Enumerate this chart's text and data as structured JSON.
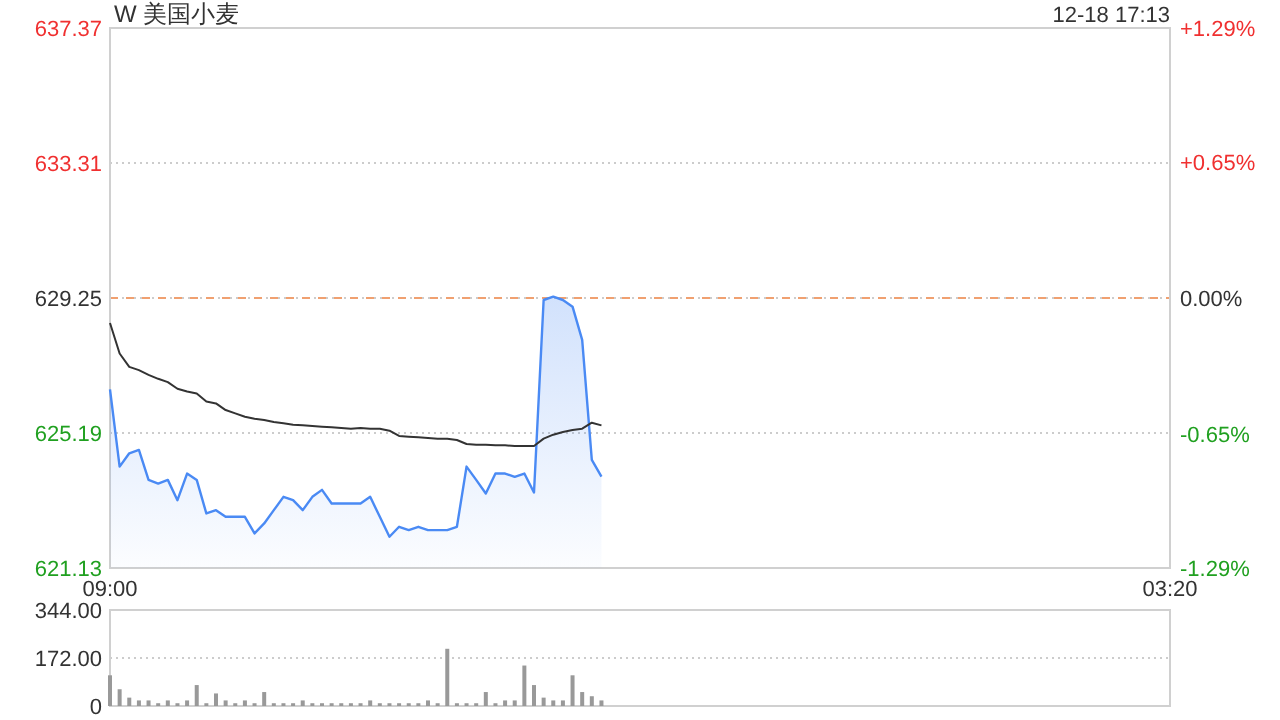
{
  "chart_data": [
    {
      "type": "area",
      "title": "W 美国小麦",
      "annotations": [
        "12-18 17:13"
      ],
      "categories": [
        "09:00",
        null,
        null,
        null,
        null,
        null,
        null,
        null,
        null,
        null,
        null,
        null,
        null,
        null,
        null,
        null,
        null,
        null,
        null,
        null,
        null,
        null,
        null,
        null,
        null,
        null,
        null,
        null,
        null,
        null,
        null,
        null,
        null,
        null,
        null,
        null,
        null,
        null,
        null,
        null,
        null,
        null,
        null,
        null,
        null,
        null,
        null,
        null,
        null,
        null,
        null,
        null,
        null,
        null,
        null,
        null,
        null,
        null,
        null,
        null,
        null,
        null,
        null,
        null,
        null,
        null,
        null,
        null,
        null,
        null,
        null,
        null,
        null,
        null,
        null,
        null,
        null,
        null,
        null,
        null,
        null,
        null,
        null,
        null,
        null,
        null,
        null,
        null,
        null,
        null,
        null,
        null,
        null,
        null,
        null,
        null,
        null,
        null,
        null,
        null,
        null,
        null,
        null,
        null,
        null,
        null,
        null,
        null,
        null,
        null,
        "03:20"
      ],
      "ylim": [
        621.13,
        637.37
      ],
      "yticks": [
        621.13,
        625.19,
        629.25,
        633.31,
        637.37
      ],
      "y2lim": [
        -1.29,
        1.29
      ],
      "y2ticks": [
        {
          "value": -1.29,
          "label": "-1.29%"
        },
        {
          "value": -0.65,
          "label": "-0.65%"
        },
        {
          "value": 0,
          "label": "0.00%"
        },
        {
          "value": 0.65,
          "label": "+0.65%"
        },
        {
          "value": 1.29,
          "label": "+1.29%"
        }
      ],
      "grid": "y",
      "ref_lines": [
        {
          "axis": "y",
          "value": 629.25,
          "color": "#f0a070",
          "line_style": "dashed"
        }
      ],
      "series": [
        {
          "color": "#4a8af4",
          "values": [
            626.5,
            624.18,
            624.58,
            624.68,
            623.78,
            623.67,
            623.78,
            623.17,
            623.97,
            623.78,
            622.77,
            622.87,
            622.67,
            622.67,
            622.67,
            622.17,
            622.47,
            622.87,
            623.27,
            623.17,
            622.87,
            623.27,
            623.48,
            623.07,
            623.07,
            623.07,
            623.07,
            623.27,
            622.67,
            622.07,
            622.37,
            622.27,
            622.37,
            622.27,
            622.27,
            622.27,
            622.37,
            624.18,
            623.78,
            623.37,
            623.97,
            623.97,
            623.87,
            623.97,
            623.4,
            629.19,
            629.29,
            629.19,
            628.99,
            627.99,
            624.38,
            623.88,
            null,
            null,
            null,
            null,
            null,
            null,
            null,
            null,
            null,
            null,
            null,
            null,
            null,
            null,
            null,
            null,
            null,
            null,
            null,
            null,
            null,
            null,
            null,
            null,
            null,
            null,
            null,
            null,
            null,
            null,
            null,
            null,
            null,
            null,
            null,
            null,
            null,
            null,
            null,
            null,
            null,
            null,
            null,
            null,
            null,
            null,
            null,
            null,
            null,
            null,
            null,
            null,
            null,
            null,
            null,
            null,
            null,
            null,
            null
          ]
        },
        {
          "type": "line",
          "color": "#333333",
          "values": [
            628.5,
            627.58,
            627.18,
            627.08,
            626.94,
            626.82,
            626.72,
            626.52,
            626.44,
            626.38,
            626.14,
            626.08,
            625.88,
            625.78,
            625.68,
            625.62,
            625.58,
            625.52,
            625.48,
            625.44,
            625.42,
            625.4,
            625.38,
            625.36,
            625.34,
            625.32,
            625.34,
            625.32,
            625.32,
            625.26,
            625.1,
            625.08,
            625.06,
            625.04,
            625.02,
            625.02,
            624.98,
            624.86,
            624.84,
            624.84,
            624.82,
            624.82,
            624.8,
            624.8,
            624.8,
            625.02,
            625.14,
            625.22,
            625.28,
            625.32,
            625.5,
            625.42,
            null,
            null,
            null,
            null,
            null,
            null,
            null,
            null,
            null,
            null,
            null,
            null,
            null,
            null,
            null,
            null,
            null,
            null,
            null,
            null,
            null,
            null,
            null,
            null,
            null,
            null,
            null,
            null,
            null,
            null,
            null,
            null,
            null,
            null,
            null,
            null,
            null,
            null,
            null,
            null,
            null,
            null,
            null,
            null,
            null,
            null,
            null,
            null,
            null,
            null,
            null,
            null,
            null,
            null,
            null,
            null,
            null,
            null,
            null
          ]
        }
      ]
    },
    {
      "type": "bar",
      "grid": "y",
      "tick_labels": "y",
      "categories": [
        null,
        null,
        null,
        null,
        null,
        null,
        null,
        null,
        null,
        null,
        null,
        null,
        null,
        null,
        null,
        null,
        null,
        null,
        null,
        null,
        null,
        null,
        null,
        null,
        null,
        null,
        null,
        null,
        null,
        null,
        null,
        null,
        null,
        null,
        null,
        null,
        null,
        null,
        null,
        null,
        null,
        null,
        null,
        null,
        null,
        null,
        null,
        null,
        null,
        null,
        null,
        null,
        null,
        null,
        null,
        null,
        null,
        null,
        null,
        null,
        null,
        null,
        null,
        null,
        null,
        null,
        null,
        null,
        null,
        null,
        null,
        null,
        null,
        null,
        null,
        null,
        null,
        null,
        null,
        null,
        null,
        null,
        null,
        null,
        null,
        null,
        null,
        null,
        null,
        null,
        null,
        null,
        null,
        null,
        null,
        null,
        null,
        null,
        null,
        null,
        null,
        null,
        null,
        null,
        null,
        null,
        null,
        null,
        null,
        null,
        null
      ],
      "ylim": [
        0,
        344
      ],
      "yticks": [
        0,
        {
          "value": 172,
          "label": "172.00"
        },
        {
          "value": 344,
          "label": "344.00"
        }
      ],
      "color": "#999999",
      "values": [
        110,
        60,
        30,
        20,
        20,
        10,
        20,
        10,
        20,
        75,
        10,
        45,
        20,
        10,
        20,
        10,
        50,
        10,
        10,
        10,
        20,
        10,
        10,
        10,
        10,
        10,
        10,
        20,
        10,
        10,
        10,
        10,
        10,
        20,
        10,
        205,
        10,
        10,
        10,
        50,
        10,
        20,
        20,
        145,
        75,
        30,
        20,
        20,
        110,
        50,
        35,
        20,
        null,
        null,
        null,
        null,
        null,
        null,
        null,
        null,
        null,
        null,
        null,
        null,
        null,
        null,
        null,
        null,
        null,
        null,
        null,
        null,
        null,
        null,
        null,
        null,
        null,
        null,
        null,
        null,
        null,
        null,
        null,
        null,
        null,
        null,
        null,
        null,
        null,
        null,
        null,
        null,
        null,
        null,
        null,
        null,
        null,
        null,
        null,
        null,
        null,
        null,
        null,
        null,
        null,
        null,
        null,
        null,
        null,
        null,
        null
      ]
    }
  ]
}
